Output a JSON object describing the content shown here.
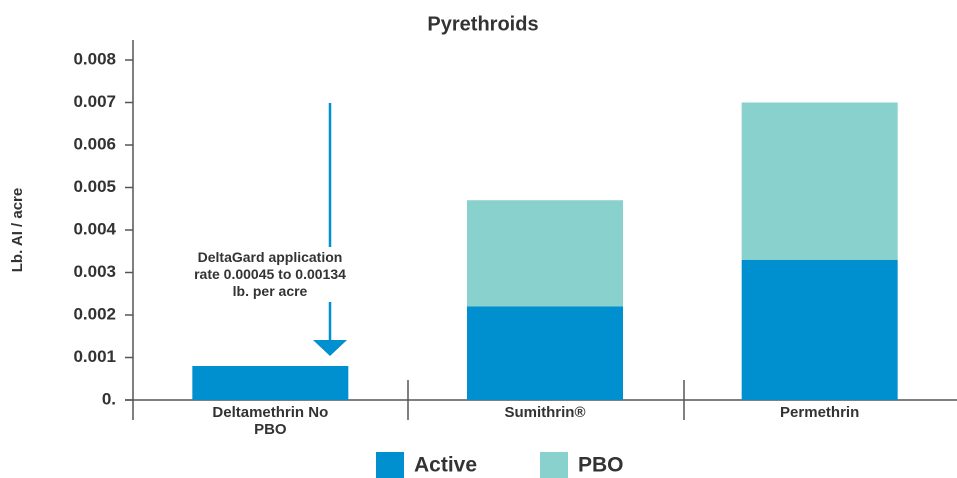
{
  "chart_data": {
    "type": "stacked_bar",
    "title": "Pyrethroids",
    "y_label": "Lb. AI / acre",
    "categories": [
      "Deltamethrin No PBO",
      "Sumithrin®",
      "Permethrin"
    ],
    "series": [
      {
        "name": "Active",
        "color": "#0090d0",
        "values": [
          0.0008,
          0.0022,
          0.0033
        ]
      },
      {
        "name": "PBO",
        "color": "#88d1cc",
        "values": [
          0,
          0.0025,
          0.0037
        ]
      }
    ],
    "ylim": [
      0,
      0.008
    ],
    "yticks": [
      {
        "value": 0,
        "label": "0."
      },
      0.001,
      0.002,
      0.003,
      0.004,
      0.005,
      0.006,
      0.007,
      0.008
    ],
    "annotation": "DeltaGard application rate 0.00045 to 0.00134 lb. per acre",
    "legend": "bottom"
  }
}
